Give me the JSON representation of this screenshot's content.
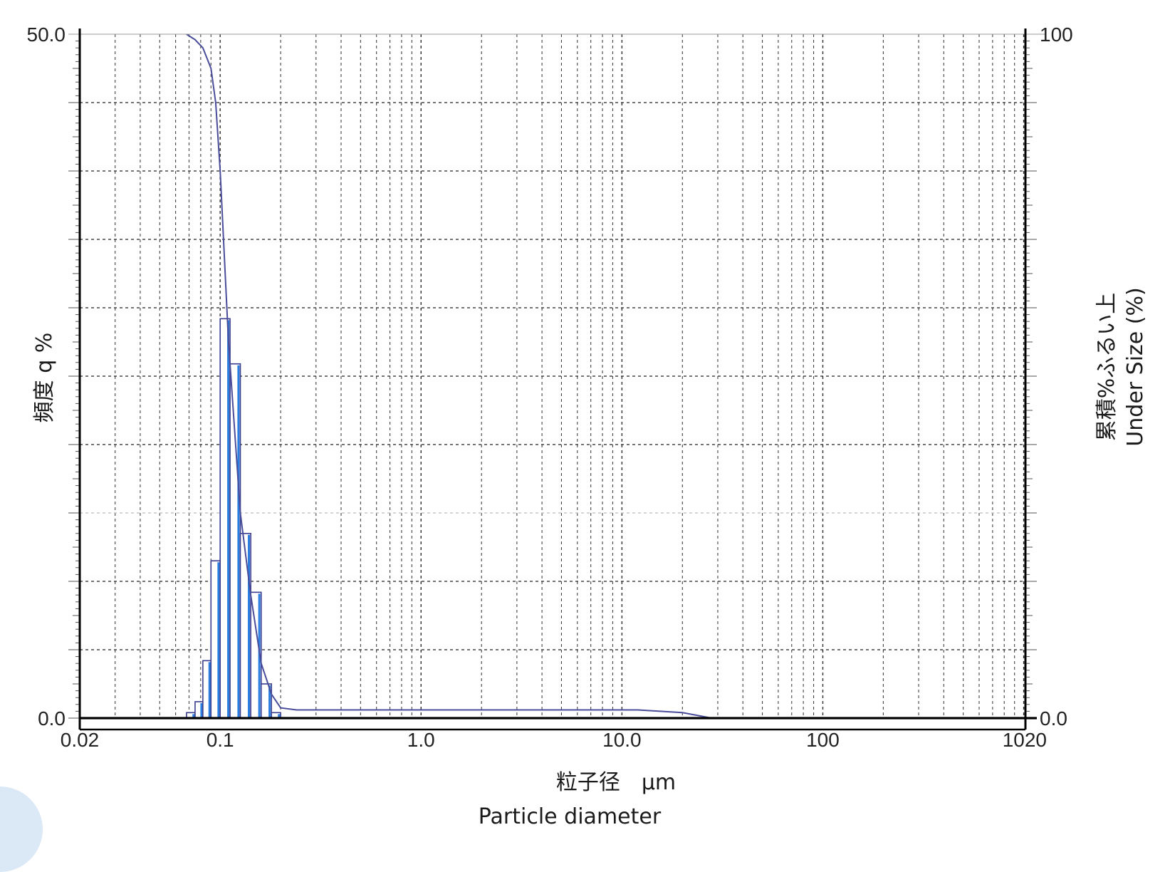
{
  "chart_data": {
    "type": "bar",
    "x_scale": "log",
    "xlim": [
      0.02,
      1020
    ],
    "ylim_left": [
      0,
      50.0
    ],
    "ylim_right": [
      0,
      100
    ],
    "x_ticks": [
      "0.02",
      "0.1",
      "1.0",
      "10.0",
      "100",
      "1020"
    ],
    "x_tick_values": [
      0.02,
      0.1,
      1.0,
      10.0,
      100,
      1020
    ],
    "y_left_ticks": [
      "50.0",
      "0.0"
    ],
    "y_right_ticks": [
      "100",
      "0.0"
    ],
    "xlabel": "粒子径　μm",
    "xlabel_en": "Particle diameter",
    "ylabel_left": "頻度 q %",
    "ylabel_right": "累積%ふるい上",
    "ylabel_right_en": "Under Size (%)",
    "grid": true,
    "histogram": [
      {
        "x0": 0.068,
        "x1": 0.075,
        "q": 0.4
      },
      {
        "x0": 0.075,
        "x1": 0.082,
        "q": 1.2
      },
      {
        "x0": 0.082,
        "x1": 0.09,
        "q": 4.2
      },
      {
        "x0": 0.09,
        "x1": 0.1,
        "q": 11.5
      },
      {
        "x0": 0.1,
        "x1": 0.112,
        "q": 29.2
      },
      {
        "x0": 0.112,
        "x1": 0.126,
        "q": 25.9
      },
      {
        "x0": 0.126,
        "x1": 0.142,
        "q": 13.5
      },
      {
        "x0": 0.142,
        "x1": 0.16,
        "q": 9.2
      },
      {
        "x0": 0.16,
        "x1": 0.18,
        "q": 2.5
      },
      {
        "x0": 0.18,
        "x1": 0.2,
        "q": 0.4
      }
    ],
    "cumulative_under_size": {
      "x": [
        0.068,
        0.075,
        0.082,
        0.09,
        0.095,
        0.1,
        0.11,
        0.126,
        0.142,
        0.16,
        0.18,
        0.2,
        0.24,
        2.0,
        12.0,
        20.0,
        28.0
      ],
      "y": [
        100,
        99.2,
        98.0,
        95.0,
        90.0,
        80.0,
        55.0,
        30.0,
        18.0,
        8.0,
        3.5,
        1.5,
        1.2,
        1.2,
        1.2,
        0.8,
        0.0
      ]
    },
    "colors": {
      "bar_fill": "#ffffff",
      "bar_stroke": "#3a3d8f",
      "bar_highlight": "#2a7ee0",
      "cumulative_line": "#4a4d9a",
      "axis": "#000000",
      "grid": "#222222"
    }
  }
}
